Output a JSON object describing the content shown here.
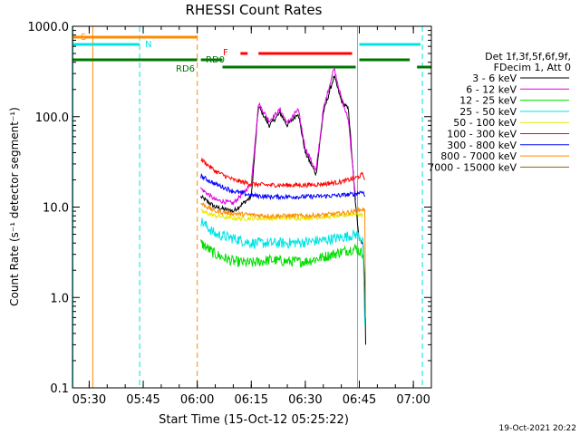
{
  "chart_data": {
    "type": "line",
    "title": "RHESSI Count Rates",
    "xlabel": "Start Time (15-Oct-12 05:25:22)",
    "ylabel": "Count Rate (s⁻¹ detector segment⁻¹)",
    "ylim": [
      0.1,
      1000
    ],
    "ylog": true,
    "y_ticks": [
      {
        "v": 0.1,
        "label": "0.1"
      },
      {
        "v": 1,
        "label": "1.0"
      },
      {
        "v": 10,
        "label": "10.0"
      },
      {
        "v": 100,
        "label": "100.0"
      },
      {
        "v": 1000,
        "label": "1000.0"
      }
    ],
    "x_ticks": [
      {
        "t": "05:30"
      },
      {
        "t": "05:45"
      },
      {
        "t": "06:00"
      },
      {
        "t": "06:15"
      },
      {
        "t": "06:30"
      },
      {
        "t": "06:45"
      },
      {
        "t": "07:00"
      }
    ],
    "xlim": [
      "05:25:22",
      "07:05:00"
    ],
    "legend": {
      "position": "right",
      "header": [
        "Det 1f,3f,5f,6f,9f,",
        "FDecim 1, Att 0"
      ],
      "entries": [
        {
          "label": "3 - 6 keV",
          "color": "#000000"
        },
        {
          "label": "6 - 12 keV",
          "color": "#e000e0"
        },
        {
          "label": "12 - 25 keV",
          "color": "#00dd00"
        },
        {
          "label": "25 - 50 keV",
          "color": "#00e5e5"
        },
        {
          "label": "50 - 100 keV",
          "color": "#e8e800"
        },
        {
          "label": "100 - 300 keV",
          "color": "#ff0000"
        },
        {
          "label": "300 - 800 keV",
          "color": "#0000ff"
        },
        {
          "label": "800 - 7000 keV",
          "color": "#ff8c00"
        },
        {
          "label": "7000 - 15000 keV",
          "color": "#8b6508"
        }
      ]
    },
    "flags": [
      {
        "label": "S",
        "color": "#ff8c00",
        "segments": [
          [
            "05:25:22",
            "06:00"
          ]
        ]
      },
      {
        "label": "N",
        "color": "#00e5e5",
        "segments": [
          [
            "05:25:22",
            "05:44"
          ],
          [
            "06:45",
            "07:02"
          ]
        ]
      },
      {
        "label": "RD6",
        "color": "#007700",
        "segments": [
          [
            "05:25:22",
            "06:00"
          ],
          [
            "06:01",
            "06:07"
          ],
          [
            "06:45",
            "06:59"
          ]
        ]
      },
      {
        "label": "RD0",
        "color": "#007700",
        "segments": [
          [
            "06:07",
            "06:44"
          ],
          [
            "07:01",
            "07:05"
          ]
        ]
      },
      {
        "label": "F",
        "color": "#ff0000",
        "segments": [
          [
            "06:12",
            "06:14"
          ],
          [
            "06:17",
            "06:43"
          ]
        ]
      }
    ],
    "vlines": [
      {
        "time": "05:25:30",
        "color": "#00e5e5",
        "style": "solid"
      },
      {
        "time": "05:31:00",
        "color": "#ff8c00",
        "style": "solid"
      },
      {
        "time": "05:44:00",
        "color": "#00e5e5",
        "style": "dashed"
      },
      {
        "time": "06:00:00",
        "color": "#ff8c00",
        "style": "dashed"
      },
      {
        "time": "06:44:30",
        "color": "#00e5e5",
        "style": "solid"
      },
      {
        "time": "07:02:30",
        "color": "#00e5e5",
        "style": "dashed"
      }
    ],
    "series": [
      {
        "name": "3 - 6 keV",
        "color": "#000000",
        "t": [
          "06:01",
          "06:05",
          "06:10",
          "06:15",
          "06:17",
          "06:20",
          "06:23",
          "06:25",
          "06:28",
          "06:30",
          "06:33",
          "06:35",
          "06:38",
          "06:40",
          "06:42",
          "06:44",
          "06:45",
          "06:46",
          "06:46:30",
          "06:46:45"
        ],
        "v": [
          13,
          10,
          9,
          13,
          130,
          80,
          110,
          80,
          110,
          40,
          23,
          110,
          280,
          150,
          120,
          10,
          4.5,
          4,
          1.5,
          0.3
        ]
      },
      {
        "name": "6 - 12 keV",
        "color": "#e000e0",
        "t": [
          "06:01",
          "06:05",
          "06:10",
          "06:15",
          "06:17",
          "06:20",
          "06:23",
          "06:25",
          "06:28",
          "06:30",
          "06:33",
          "06:35",
          "06:38",
          "06:40",
          "06:42",
          "06:44"
        ],
        "v": [
          16,
          12,
          11,
          18,
          140,
          90,
          120,
          85,
          120,
          45,
          25,
          120,
          350,
          160,
          90,
          12
        ]
      },
      {
        "name": "12 - 25 keV",
        "color": "#00dd00",
        "t": [
          "06:01",
          "06:05",
          "06:10",
          "06:15",
          "06:20",
          "06:25",
          "06:30",
          "06:35",
          "06:40",
          "06:44",
          "06:46"
        ],
        "v": [
          4,
          3,
          2.5,
          2.4,
          2.6,
          2.5,
          2.5,
          2.8,
          3.2,
          3.5,
          3
        ]
      },
      {
        "name": "25 - 50 keV",
        "color": "#00e5e5",
        "t": [
          "06:01",
          "06:05",
          "06:10",
          "06:15",
          "06:20",
          "06:25",
          "06:30",
          "06:35",
          "06:40",
          "06:44",
          "06:46",
          "06:46:30"
        ],
        "v": [
          7,
          5,
          4.5,
          4,
          4,
          4,
          4.1,
          4.3,
          4.6,
          5,
          4.5,
          0.5
        ]
      },
      {
        "name": "50 - 100 keV",
        "color": "#e8e800",
        "t": [
          "06:01",
          "06:05",
          "06:10",
          "06:15",
          "06:20",
          "06:25",
          "06:30",
          "06:35",
          "06:40",
          "06:44",
          "06:46"
        ],
        "v": [
          9,
          8,
          7.5,
          7.5,
          7.5,
          7.6,
          7.6,
          7.8,
          8,
          8.5,
          8
        ]
      },
      {
        "name": "100 - 300 keV",
        "color": "#ff0000",
        "t": [
          "06:01",
          "06:05",
          "06:10",
          "06:15",
          "06:20",
          "06:25",
          "06:30",
          "06:35",
          "06:40",
          "06:44",
          "06:46",
          "06:46:30"
        ],
        "v": [
          34,
          25,
          20,
          18,
          17.5,
          17.5,
          17.5,
          18,
          19,
          21,
          23,
          20
        ]
      },
      {
        "name": "300 - 800 keV",
        "color": "#0000ff",
        "t": [
          "06:01",
          "06:05",
          "06:10",
          "06:15",
          "06:20",
          "06:25",
          "06:30",
          "06:35",
          "06:40",
          "06:44",
          "06:46",
          "06:46:30"
        ],
        "v": [
          22,
          18,
          15,
          13.5,
          13,
          13,
          13,
          13.2,
          13.5,
          14,
          15,
          13
        ]
      },
      {
        "name": "800 - 7000 keV",
        "color": "#ff8c00",
        "t": [
          "06:01",
          "06:05",
          "06:10",
          "06:15",
          "06:20",
          "06:25",
          "06:30",
          "06:35",
          "06:40",
          "06:44",
          "06:46",
          "06:46:30",
          "06:46:45"
        ],
        "v": [
          11,
          9,
          8.5,
          8.2,
          8,
          8,
          8,
          8.2,
          8.5,
          9,
          9.5,
          9,
          0.6
        ]
      }
    ],
    "timestamp": "19-Oct-2021 20:22"
  }
}
